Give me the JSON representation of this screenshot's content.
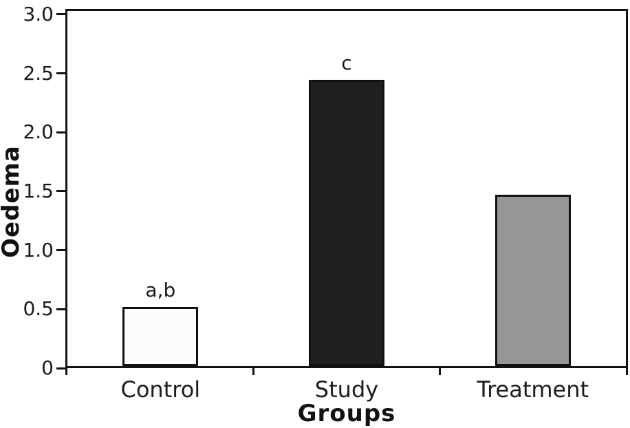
{
  "chart_data": {
    "type": "bar",
    "title": "",
    "xlabel": "Groups",
    "ylabel": "Oedema",
    "ylim": [
      0,
      3.0
    ],
    "yticks": [
      "0",
      "0.5",
      "1.0",
      "1.5",
      "2.0",
      "2.5",
      "3.0"
    ],
    "categories": [
      "Control",
      "Study",
      "Treatment"
    ],
    "values": [
      0.5,
      2.43,
      1.45
    ],
    "annotations": [
      "a,b",
      "c",
      ""
    ],
    "bar_colors": [
      "#fcfcfc",
      "#1f1f1f",
      "#969696"
    ],
    "bar_border_color": "#111111",
    "axis_color": "#131313",
    "text_color": "#1a1a1a",
    "background": "#ffffff",
    "grid": false,
    "legend_position": null
  }
}
